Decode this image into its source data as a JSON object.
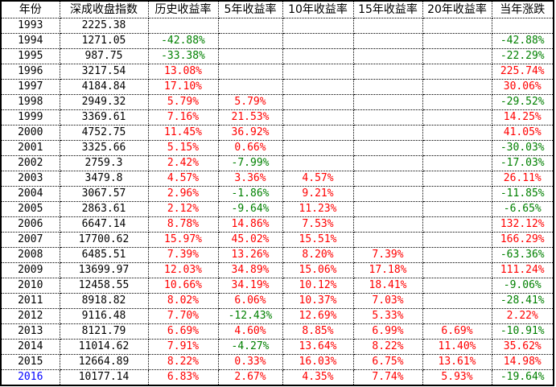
{
  "colors": {
    "positive": "#ff0000",
    "negative": "#008000",
    "highlight_year": "#0000ff"
  },
  "headers": [
    "年份",
    "深成收盘指数",
    "历史收益率",
    "5年收益率",
    "10年收益率",
    "15年收益率",
    "20年收益率",
    "当年涨跌"
  ],
  "rows": [
    [
      "1993",
      "2225.38",
      null,
      null,
      null,
      null,
      null,
      null
    ],
    [
      "1994",
      "1271.05",
      "-42.88%",
      null,
      null,
      null,
      null,
      "-42.88%"
    ],
    [
      "1995",
      "987.75",
      "-33.38%",
      null,
      null,
      null,
      null,
      "-22.29%"
    ],
    [
      "1996",
      "3217.54",
      "13.08%",
      null,
      null,
      null,
      null,
      "225.74%"
    ],
    [
      "1997",
      "4184.84",
      "17.10%",
      null,
      null,
      null,
      null,
      "30.06%"
    ],
    [
      "1998",
      "2949.32",
      "5.79%",
      "5.79%",
      null,
      null,
      null,
      "-29.52%"
    ],
    [
      "1999",
      "3369.61",
      "7.16%",
      "21.53%",
      null,
      null,
      null,
      "14.25%"
    ],
    [
      "2000",
      "4752.75",
      "11.45%",
      "36.92%",
      null,
      null,
      null,
      "41.05%"
    ],
    [
      "2001",
      "3325.66",
      "5.15%",
      "0.66%",
      null,
      null,
      null,
      "-30.03%"
    ],
    [
      "2002",
      "2759.3",
      "2.42%",
      "-7.99%",
      null,
      null,
      null,
      "-17.03%"
    ],
    [
      "2003",
      "3479.8",
      "4.57%",
      "3.36%",
      "4.57%",
      null,
      null,
      "26.11%"
    ],
    [
      "2004",
      "3067.57",
      "2.96%",
      "-1.86%",
      "9.21%",
      null,
      null,
      "-11.85%"
    ],
    [
      "2005",
      "2863.61",
      "2.12%",
      "-9.64%",
      "11.23%",
      null,
      null,
      "-6.65%"
    ],
    [
      "2006",
      "6647.14",
      "8.78%",
      "14.86%",
      "7.53%",
      null,
      null,
      "132.12%"
    ],
    [
      "2007",
      "17700.62",
      "15.97%",
      "45.02%",
      "15.51%",
      null,
      null,
      "166.29%"
    ],
    [
      "2008",
      "6485.51",
      "7.39%",
      "13.26%",
      "8.20%",
      "7.39%",
      null,
      "-63.36%"
    ],
    [
      "2009",
      "13699.97",
      "12.03%",
      "34.89%",
      "15.06%",
      "17.18%",
      null,
      "111.24%"
    ],
    [
      "2010",
      "12458.55",
      "10.66%",
      "34.19%",
      "10.12%",
      "18.41%",
      null,
      "-9.06%"
    ],
    [
      "2011",
      "8918.82",
      "8.02%",
      "6.06%",
      "10.37%",
      "7.03%",
      null,
      "-28.41%"
    ],
    [
      "2012",
      "9116.48",
      "7.70%",
      "-12.43%",
      "12.69%",
      "5.33%",
      null,
      "2.22%"
    ],
    [
      "2013",
      "8121.79",
      "6.69%",
      "4.60%",
      "8.85%",
      "6.99%",
      "6.69%",
      "-10.91%"
    ],
    [
      "2014",
      "11014.62",
      "7.91%",
      "-4.27%",
      "13.64%",
      "8.22%",
      "11.40%",
      "35.62%"
    ],
    [
      "2015",
      "12664.89",
      "8.22%",
      "0.33%",
      "16.03%",
      "6.75%",
      "13.61%",
      "14.98%"
    ],
    [
      "2016",
      "10177.14",
      "6.83%",
      "2.67%",
      "4.35%",
      "7.74%",
      "5.93%",
      "-19.64%"
    ]
  ]
}
